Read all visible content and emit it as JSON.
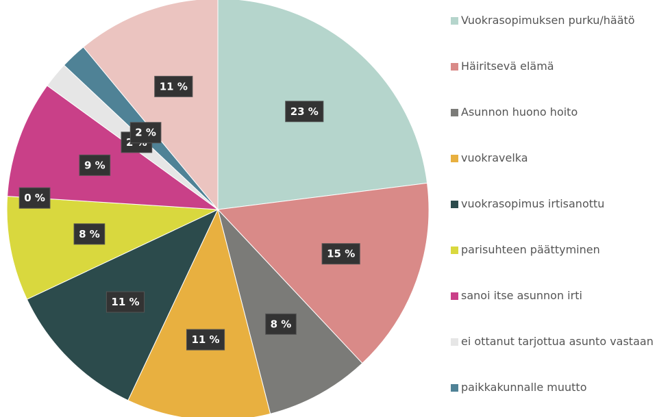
{
  "chart_data": {
    "type": "pie",
    "categories": [
      "Vuokrasopimuksen purku/häätö",
      "Häiritsevä elämä",
      "Asunnon huono hoito",
      "vuokravelka",
      "vuokrasopimus irtisanottu",
      "parisuhteen päättyminen",
      null,
      "sanoi itse asunnon irti",
      "ei ottanut tarjottua asunto vastaan",
      "paikkakunnalle muutto",
      null
    ],
    "values": [
      23,
      15,
      8,
      11,
      11,
      8,
      0,
      9,
      2,
      2,
      11
    ],
    "value_labels": [
      "23 %",
      "15 %",
      "8 %",
      "11 %",
      "11 %",
      "8 %",
      "0 %",
      "9 %",
      "2 %",
      "2 %",
      "11 %"
    ],
    "colors": [
      "#b5d5cc",
      "#d98a88",
      "#7b7b78",
      "#e8b040",
      "#2c4b4c",
      "#d9d83e",
      "#a6a6a6",
      "#c94088",
      "#e6e6e6",
      "#4f8296",
      "#ebc4c0"
    ],
    "legend": "right"
  }
}
